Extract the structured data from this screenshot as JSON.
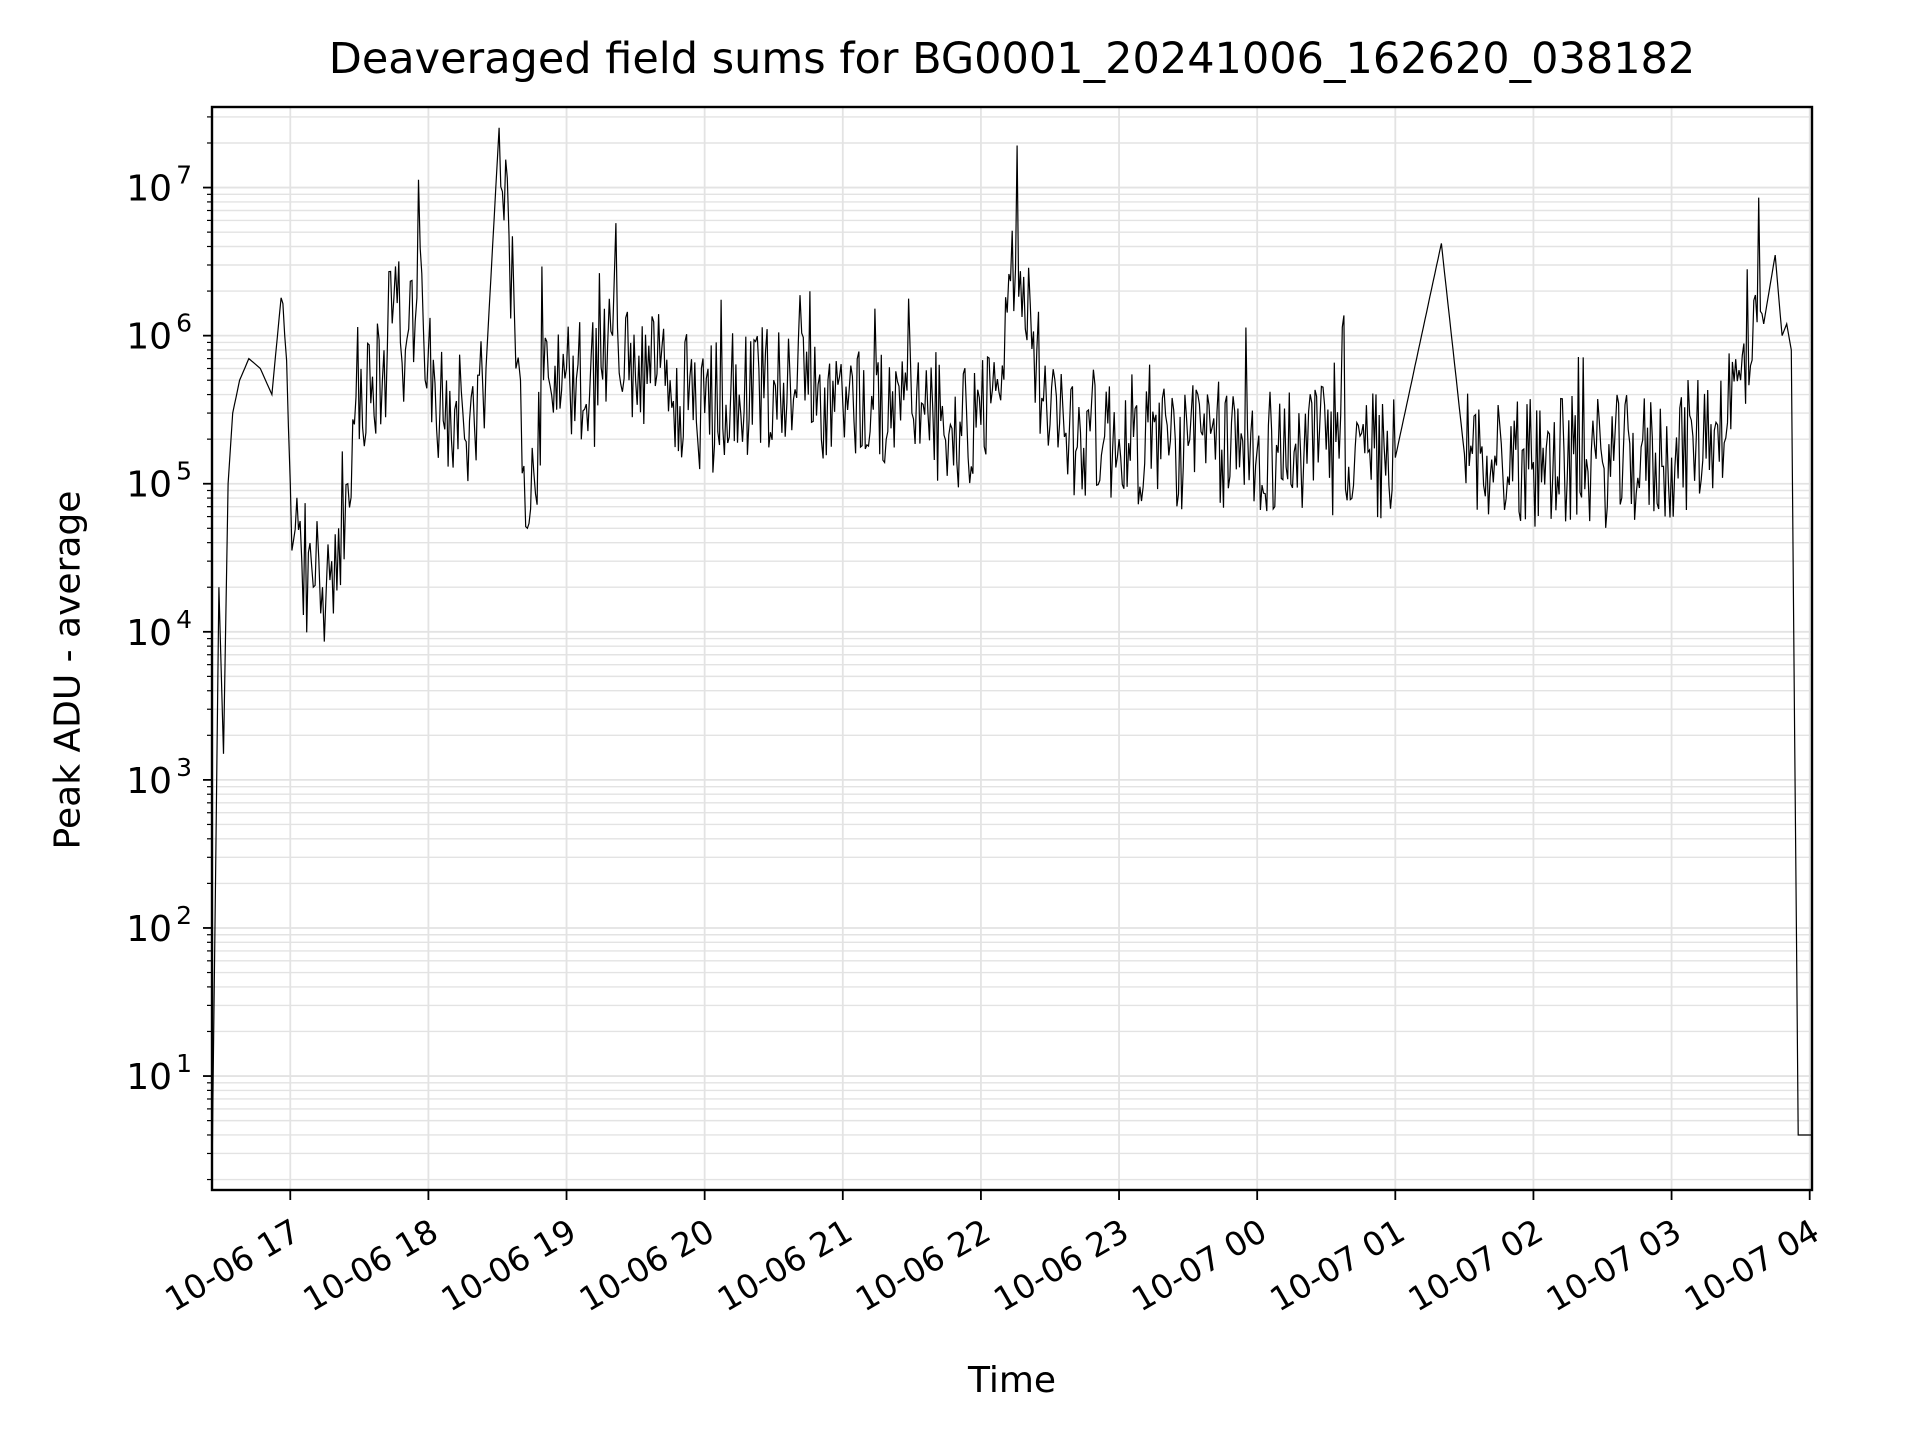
{
  "chart_data": {
    "type": "line",
    "title": "Deaveraged field sums for BG0001_20241006_162620_038182",
    "xlabel": "Time",
    "ylabel": "Peak ADU - average",
    "yscale": "log",
    "ylim": [
      1.7,
      35000000
    ],
    "xlim": [
      "2024-10-06 16:26",
      "2024-10-07 04:01"
    ],
    "grid": true,
    "line_color": "#000000",
    "grid_color": "#e3e3e3",
    "x_ticks": [
      "10-06 17",
      "10-06 18",
      "10-06 19",
      "10-06 20",
      "10-06 21",
      "10-06 22",
      "10-06 23",
      "10-07 00",
      "10-07 01",
      "10-07 02",
      "10-07 03",
      "10-07 04"
    ],
    "y_ticks": [
      {
        "base": "10",
        "exp": "1"
      },
      {
        "base": "10",
        "exp": "2"
      },
      {
        "base": "10",
        "exp": "3"
      },
      {
        "base": "10",
        "exp": "4"
      },
      {
        "base": "10",
        "exp": "5"
      },
      {
        "base": "10",
        "exp": "6"
      },
      {
        "base": "10",
        "exp": "7"
      }
    ],
    "series": [
      {
        "x": [
          "2024-10-06 16:26",
          "2024-10-06 16:29",
          "2024-10-06 16:31",
          "2024-10-06 16:33",
          "2024-10-06 16:35",
          "2024-10-06 16:38",
          "2024-10-06 16:42",
          "2024-10-06 16:47",
          "2024-10-06 16:52",
          "2024-10-06 16:56",
          "2024-10-06 17:00",
          "2024-10-06 17:05",
          "2024-10-06 17:10",
          "2024-10-06 17:14",
          "2024-10-06 17:18",
          "2024-10-06 17:21",
          "2024-10-06 17:25",
          "2024-10-06 17:30",
          "2024-10-06 17:35",
          "2024-10-06 17:40",
          "2024-10-06 17:45",
          "2024-10-06 17:50",
          "2024-10-06 17:55",
          "2024-10-06 18:00",
          "2024-10-06 18:05",
          "2024-10-06 18:10",
          "2024-10-06 18:15",
          "2024-10-06 18:20",
          "2024-10-06 18:25",
          "2024-10-06 18:30",
          "2024-10-06 18:35",
          "2024-10-06 18:38",
          "2024-10-06 18:40",
          "2024-10-06 18:43",
          "2024-10-06 18:50",
          "2024-10-06 19:00",
          "2024-10-06 19:10",
          "2024-10-06 19:20",
          "2024-10-06 19:30",
          "2024-10-06 19:45",
          "2024-10-06 20:00",
          "2024-10-06 20:15",
          "2024-10-06 20:30",
          "2024-10-06 20:45",
          "2024-10-06 21:00",
          "2024-10-06 21:30",
          "2024-10-06 22:00",
          "2024-10-06 22:15",
          "2024-10-06 22:30",
          "2024-10-06 23:00",
          "2024-10-06 23:30",
          "2024-10-07 00:00",
          "2024-10-07 00:30",
          "2024-10-07 01:00",
          "2024-10-07 01:20",
          "2024-10-07 01:30",
          "2024-10-07 02:00",
          "2024-10-07 02:30",
          "2024-10-07 03:00",
          "2024-10-07 03:20",
          "2024-10-07 03:30",
          "2024-10-07 03:40",
          "2024-10-07 03:45",
          "2024-10-07 03:48",
          "2024-10-07 03:50",
          "2024-10-07 03:52",
          "2024-10-07 03:55",
          "2024-10-07 04:01"
        ],
        "y": [
          2,
          20000,
          1500,
          100000,
          300000,
          500000,
          700000,
          600000,
          400000,
          1800000,
          100000,
          30000,
          20000,
          20000,
          30000,
          50000,
          100000,
          200000,
          350000,
          500000,
          1800000,
          800000,
          1800000,
          800000,
          300000,
          200000,
          300000,
          250000,
          600000,
          16000000,
          4800000,
          600000,
          500000,
          50000,
          500000,
          600000,
          400000,
          1000000,
          500000,
          500000,
          300000,
          400000,
          500000,
          400000,
          350000,
          300000,
          250000,
          2800000,
          250000,
          200000,
          180000,
          170000,
          170000,
          150000,
          4200000,
          160000,
          140000,
          140000,
          150000,
          250000,
          500000,
          1200000,
          3500000,
          1000000,
          1200000,
          800000,
          4,
          4
        ]
      }
    ]
  }
}
